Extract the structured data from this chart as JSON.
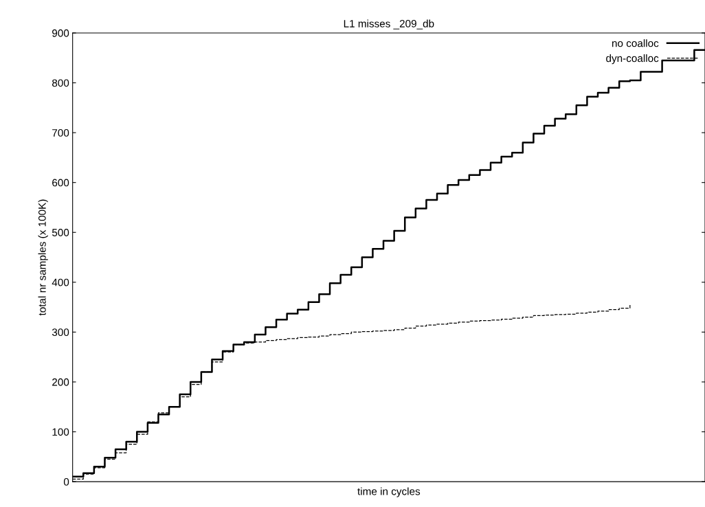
{
  "chart_data": {
    "type": "step",
    "title": "L1 misses _209_db",
    "xlabel": "time in cycles",
    "ylabel": "total nr samples (x 100K)",
    "categories": [
      null,
      null,
      null,
      null,
      null,
      null,
      null,
      null,
      null,
      null,
      null,
      null,
      null,
      null,
      null,
      null,
      null,
      null,
      null,
      null,
      null,
      null,
      null,
      null,
      null,
      null,
      null,
      null,
      null,
      null,
      null,
      null,
      null,
      null,
      null,
      null,
      null,
      null,
      null,
      null,
      null,
      null,
      null,
      null,
      null,
      null,
      null,
      null,
      null,
      null,
      null,
      null,
      null,
      null,
      null,
      null,
      null,
      null,
      null,
      null
    ],
    "ylim": [
      0,
      900
    ],
    "yticks": [
      0,
      100,
      200,
      300,
      400,
      500,
      600,
      700,
      800,
      900
    ],
    "grid": false,
    "legend": "top right",
    "tick_labels": "y",
    "series": [
      {
        "name": "no coalloc",
        "color": "#000000",
        "line_style": "solid",
        "values": [
          10,
          17,
          30,
          48,
          65,
          80,
          100,
          118,
          135,
          150,
          175,
          200,
          220,
          245,
          262,
          275,
          280,
          295,
          310,
          325,
          337,
          345,
          360,
          376,
          398,
          415,
          430,
          450,
          467,
          483,
          503,
          530,
          548,
          565,
          578,
          595,
          605,
          615,
          625,
          640,
          652,
          660,
          680,
          698,
          714,
          728,
          737,
          755,
          772,
          780,
          790,
          803,
          805,
          822,
          822,
          845,
          845,
          845,
          866,
          866
        ]
      },
      {
        "name": "dyn-coalloc",
        "color": "#000000",
        "line_style": "dashed",
        "values": [
          5,
          15,
          28,
          45,
          58,
          75,
          95,
          120,
          138,
          150,
          170,
          195,
          220,
          240,
          260,
          275,
          278,
          280,
          283,
          285,
          287,
          289,
          290,
          292,
          295,
          297,
          300,
          301,
          302,
          303,
          305,
          308,
          312,
          314,
          316,
          318,
          320,
          322,
          323,
          324,
          326,
          328,
          330,
          333,
          334,
          335,
          336,
          338,
          340,
          342,
          345,
          348,
          355,
          null,
          null,
          null,
          null,
          null,
          null,
          null
        ]
      }
    ]
  }
}
